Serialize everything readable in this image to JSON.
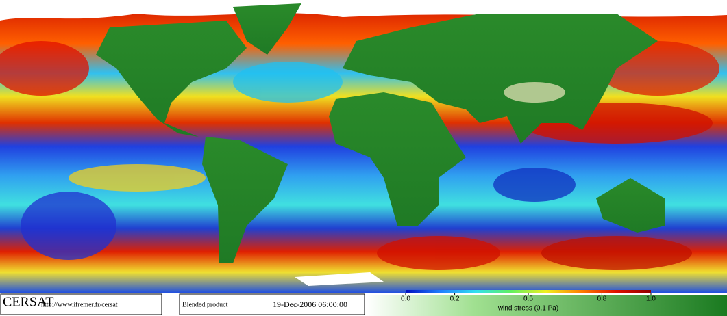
{
  "map": {
    "logo": "CERSAT",
    "url": "http://www.ifremer.fr/cersat",
    "product": "Blended product",
    "timestamp": "19-Dec-2006 06:00:00"
  },
  "colorbar": {
    "label": "wind stress (0.1 Pa)",
    "lim": [
      0,
      1
    ],
    "ticks": [
      {
        "value": 0,
        "label": "0.0"
      },
      0.2,
      0.5,
      0.8,
      {
        "value": 1,
        "label": "1.0"
      }
    ],
    "colors": [
      "#0010c0",
      "#2080ff",
      "#30e0f0",
      "#60f060",
      "#f0f020",
      "#ff8000",
      "#e01000",
      "#900000"
    ]
  }
}
